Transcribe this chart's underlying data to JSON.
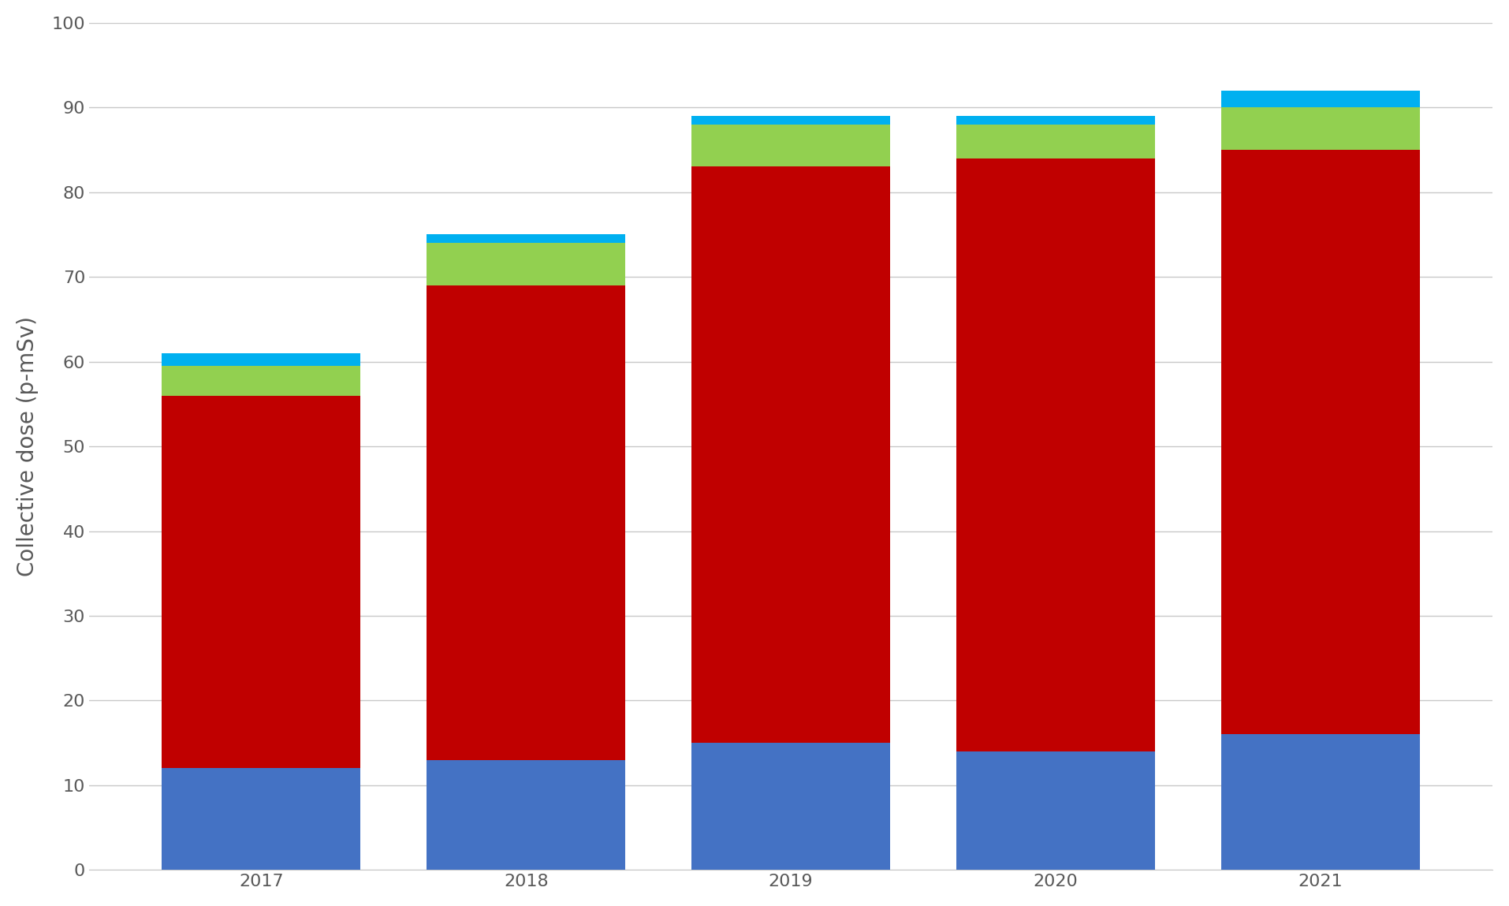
{
  "years": [
    "2017",
    "2018",
    "2019",
    "2020",
    "2021"
  ],
  "blue": [
    12,
    13,
    15,
    14,
    16
  ],
  "red": [
    44,
    56,
    68,
    70,
    69
  ],
  "green": [
    3.5,
    5.0,
    5.0,
    4.0,
    5.0
  ],
  "cyan": [
    1.5,
    1.0,
    1.0,
    1.0,
    2.0
  ],
  "blue_color": "#4472C4",
  "red_color": "#C00000",
  "green_color": "#92D050",
  "cyan_color": "#00B0F0",
  "ylabel": "Collective dose (p-mSv)",
  "ylim": [
    0,
    100
  ],
  "yticks": [
    0,
    10,
    20,
    30,
    40,
    50,
    60,
    70,
    80,
    90,
    100
  ],
  "background_color": "#FFFFFF",
  "plot_area_color": "#FFFFFF",
  "grid_color": "#C8C8C8",
  "bar_width": 0.75,
  "tick_fontsize": 16,
  "ylabel_fontsize": 20
}
